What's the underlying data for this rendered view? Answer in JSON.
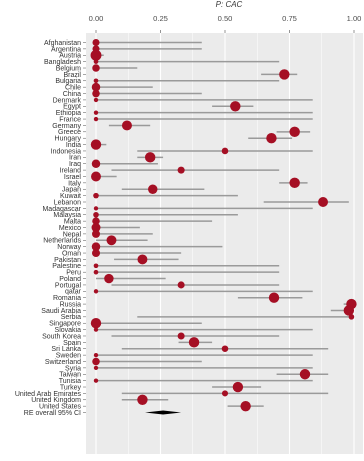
{
  "chart_data": {
    "type": "forest",
    "title": "",
    "xlabel": "P: CAC",
    "xlim": [
      0,
      1
    ],
    "xticks": [
      {
        "value": 0,
        "label": "0.00"
      },
      {
        "value": 0.25,
        "label": "0.25"
      },
      {
        "value": 0.5,
        "label": "0.50"
      },
      {
        "value": 0.75,
        "label": "0.75"
      },
      {
        "value": 1,
        "label": "1.00"
      }
    ],
    "colors": {
      "point": "#a50f24",
      "ci_line": "#9a9a9a",
      "panel": "#ebebeb",
      "grid": "#ffffff",
      "summary": "#000000"
    },
    "countries": [
      {
        "name": "Afghanistan",
        "est": 0.0,
        "lo": 0.0,
        "hi": 0.41,
        "w": 0.4
      },
      {
        "name": "Argentina",
        "est": 0.0,
        "lo": 0.0,
        "hi": 0.41,
        "w": 0.4
      },
      {
        "name": "Austria",
        "est": 0.0,
        "lo": 0.0,
        "hi": 0.03,
        "w": 0.8
      },
      {
        "name": "Bangladesh",
        "est": 0.0,
        "lo": 0.0,
        "hi": 0.71,
        "w": 0.15
      },
      {
        "name": "Belgium",
        "est": 0.0,
        "lo": 0.0,
        "hi": 0.16,
        "w": 0.45
      },
      {
        "name": "Brazil",
        "est": 0.73,
        "lo": 0.64,
        "hi": 0.78,
        "w": 0.75
      },
      {
        "name": "Bulgaria",
        "est": 0.0,
        "lo": 0.0,
        "hi": 0.71,
        "w": 0.15
      },
      {
        "name": "Chile",
        "est": 0.0,
        "lo": 0.0,
        "hi": 0.22,
        "w": 0.55
      },
      {
        "name": "China",
        "est": 0.0,
        "lo": 0.0,
        "hi": 0.41,
        "w": 0.45
      },
      {
        "name": "Denmark",
        "est": 0.0,
        "lo": 0.0,
        "hi": 0.84,
        "w": 0.12
      },
      {
        "name": "Egypt",
        "est": 0.54,
        "lo": 0.45,
        "hi": 0.61,
        "w": 0.75
      },
      {
        "name": "Ethiopia",
        "est": 0.0,
        "lo": 0.0,
        "hi": 0.84,
        "w": 0.12
      },
      {
        "name": "France",
        "est": 0.0,
        "lo": 0.0,
        "hi": 0.84,
        "w": 0.12
      },
      {
        "name": "Germany",
        "est": 0.12,
        "lo": 0.05,
        "hi": 0.21,
        "w": 0.7
      },
      {
        "name": "Greece",
        "est": 0.77,
        "lo": 0.7,
        "hi": 0.83,
        "w": 0.75
      },
      {
        "name": "Hungary",
        "est": 0.68,
        "lo": 0.59,
        "hi": 0.76,
        "w": 0.75
      },
      {
        "name": "India",
        "est": 0.0,
        "lo": 0.0,
        "hi": 0.04,
        "w": 0.75
      },
      {
        "name": "Indonesia",
        "est": 0.5,
        "lo": 0.16,
        "hi": 0.84,
        "w": 0.35
      },
      {
        "name": "Iran",
        "est": 0.21,
        "lo": 0.16,
        "hi": 0.26,
        "w": 0.75
      },
      {
        "name": "Iraq",
        "est": 0.0,
        "lo": 0.0,
        "hi": 0.24,
        "w": 0.55
      },
      {
        "name": "Ireland",
        "est": 0.33,
        "lo": 0.06,
        "hi": 0.71,
        "w": 0.4
      },
      {
        "name": "Israel",
        "est": 0.0,
        "lo": 0.0,
        "hi": 0.08,
        "w": 0.7
      },
      {
        "name": "Italy",
        "est": 0.77,
        "lo": 0.71,
        "hi": 0.82,
        "w": 0.75
      },
      {
        "name": "Japan",
        "est": 0.22,
        "lo": 0.1,
        "hi": 0.42,
        "w": 0.65
      },
      {
        "name": "Kuwait",
        "est": 0.0,
        "lo": 0.0,
        "hi": 0.55,
        "w": 0.25
      },
      {
        "name": "Lebanon",
        "est": 0.88,
        "lo": 0.65,
        "hi": 0.98,
        "w": 0.7
      },
      {
        "name": "Madagascar",
        "est": 0.0,
        "lo": 0.0,
        "hi": 0.84,
        "w": 0.12
      },
      {
        "name": "Malaysia",
        "est": 0.0,
        "lo": 0.0,
        "hi": 0.55,
        "w": 0.25
      },
      {
        "name": "Malta",
        "est": 0.0,
        "lo": 0.0,
        "hi": 0.45,
        "w": 0.45
      },
      {
        "name": "Mexico",
        "est": 0.0,
        "lo": 0.0,
        "hi": 0.17,
        "w": 0.6
      },
      {
        "name": "Nepal",
        "est": 0.0,
        "lo": 0.0,
        "hi": 0.22,
        "w": 0.5
      },
      {
        "name": "Netherlands",
        "est": 0.06,
        "lo": 0.0,
        "hi": 0.2,
        "w": 0.7
      },
      {
        "name": "Norway",
        "est": 0.0,
        "lo": 0.0,
        "hi": 0.49,
        "w": 0.55
      },
      {
        "name": "Oman",
        "est": 0.0,
        "lo": 0.0,
        "hi": 0.33,
        "w": 0.5
      },
      {
        "name": "Pakistan",
        "est": 0.18,
        "lo": 0.07,
        "hi": 0.32,
        "w": 0.7
      },
      {
        "name": "Palestine",
        "est": 0.0,
        "lo": 0.0,
        "hi": 0.71,
        "w": 0.15
      },
      {
        "name": "Peru",
        "est": 0.0,
        "lo": 0.0,
        "hi": 0.71,
        "w": 0.15
      },
      {
        "name": "Poland",
        "est": 0.05,
        "lo": 0.0,
        "hi": 0.27,
        "w": 0.65
      },
      {
        "name": "Portugal",
        "est": 0.33,
        "lo": 0.06,
        "hi": 0.71,
        "w": 0.4
      },
      {
        "name": "qatar",
        "est": 0.0,
        "lo": 0.0,
        "hi": 0.84,
        "w": 0.12
      },
      {
        "name": "Romania",
        "est": 0.69,
        "lo": 0.55,
        "hi": 0.8,
        "w": 0.75
      },
      {
        "name": "Russia",
        "est": 0.99,
        "lo": 0.96,
        "hi": 1.0,
        "w": 0.75
      },
      {
        "name": "Saudi Arabia",
        "est": 0.98,
        "lo": 0.91,
        "hi": 1.0,
        "w": 0.75
      },
      {
        "name": "Serbia",
        "est": 0.99,
        "lo": 0.16,
        "hi": 1.0,
        "w": 0.25
      },
      {
        "name": "Singapore",
        "est": 0.0,
        "lo": 0.0,
        "hi": 0.41,
        "w": 0.75
      },
      {
        "name": "Slovakia",
        "est": 0.0,
        "lo": 0.0,
        "hi": 0.84,
        "w": 0.12
      },
      {
        "name": "South Korea",
        "est": 0.33,
        "lo": 0.06,
        "hi": 0.71,
        "w": 0.4
      },
      {
        "name": "Spain",
        "est": 0.38,
        "lo": 0.32,
        "hi": 0.45,
        "w": 0.75
      },
      {
        "name": "Sri Lanka",
        "est": 0.5,
        "lo": 0.1,
        "hi": 0.9,
        "w": 0.35
      },
      {
        "name": "Sweden",
        "est": 0.0,
        "lo": 0.0,
        "hi": 0.84,
        "w": 0.12
      },
      {
        "name": "Switzerland",
        "est": 0.0,
        "lo": 0.0,
        "hi": 0.41,
        "w": 0.45
      },
      {
        "name": "Syria",
        "est": 0.0,
        "lo": 0.0,
        "hi": 0.84,
        "w": 0.12
      },
      {
        "name": "Taiwan",
        "est": 0.81,
        "lo": 0.7,
        "hi": 0.9,
        "w": 0.75
      },
      {
        "name": "Tunisia",
        "est": 0.0,
        "lo": 0.0,
        "hi": 0.84,
        "w": 0.12
      },
      {
        "name": "Turkey",
        "est": 0.55,
        "lo": 0.45,
        "hi": 0.64,
        "w": 0.75
      },
      {
        "name": "United Arab Emirates",
        "est": 0.5,
        "lo": 0.1,
        "hi": 0.9,
        "w": 0.3
      },
      {
        "name": "United Kingdom",
        "est": 0.18,
        "lo": 0.1,
        "hi": 0.28,
        "w": 0.75
      },
      {
        "name": "United States",
        "est": 0.58,
        "lo": 0.51,
        "hi": 0.65,
        "w": 0.75
      }
    ],
    "summary": {
      "name": "RE overall 95% CI",
      "est": 0.26,
      "lo": 0.19,
      "hi": 0.33
    }
  }
}
